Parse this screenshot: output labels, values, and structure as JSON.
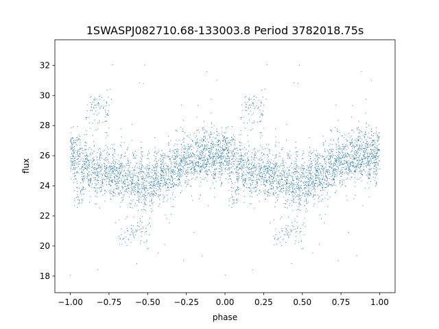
{
  "chart_data": {
    "type": "scatter",
    "title": "1SWASPJ082710.68-133003.8 Period 3782018.75s",
    "xlabel": "phase",
    "ylabel": "flux",
    "xlim": [
      -1.1,
      1.1
    ],
    "ylim": [
      16.9,
      33.7
    ],
    "x_ticks": [
      -1.0,
      -0.75,
      -0.5,
      -0.25,
      0.0,
      0.25,
      0.5,
      0.75,
      1.0
    ],
    "x_tick_labels": [
      "−1.00",
      "−0.75",
      "−0.50",
      "−0.25",
      "0.00",
      "0.25",
      "0.50",
      "0.75",
      "1.00"
    ],
    "y_ticks": [
      18,
      20,
      22,
      24,
      26,
      28,
      30,
      32
    ],
    "y_tick_labels": [
      "18",
      "20",
      "22",
      "24",
      "26",
      "28",
      "30",
      "32"
    ],
    "grid": false,
    "marker_color": "#1f77b4",
    "trend": {
      "phase": [
        0.0,
        0.04,
        0.1,
        0.15,
        0.22,
        0.3,
        0.4,
        0.5,
        0.58,
        0.65,
        0.72,
        0.8,
        0.88,
        0.95,
        1.0
      ],
      "median_flux": [
        26.1,
        25.8,
        25.3,
        24.9,
        24.9,
        24.7,
        24.4,
        24.2,
        24.5,
        25.0,
        25.5,
        25.8,
        26.0,
        26.1,
        26.1
      ]
    },
    "features": {
      "high_branch_phase": [
        0.1,
        0.25
      ],
      "high_branch_flux": 29.0,
      "low_dip_phase": [
        0.31,
        0.52
      ],
      "low_dip_flux": 20.9,
      "secondary_dip_phase": [
        0.02,
        0.1
      ],
      "secondary_dip_flux": 23.2
    }
  }
}
